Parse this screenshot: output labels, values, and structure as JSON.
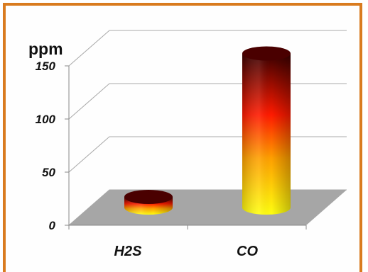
{
  "chart_data": {
    "type": "bar",
    "style": "3d-cylinder",
    "categories": [
      "H2S",
      "CO"
    ],
    "values": [
      10,
      145
    ],
    "ylabel": "ppm",
    "ylim": [
      0,
      150
    ],
    "yticks": [
      "0",
      "50",
      "100",
      "150"
    ],
    "grid": true,
    "legend": "none",
    "colors": {
      "low": "#ffee00",
      "mid": "#ff2000",
      "high": "#3a0000",
      "floor": "#a6a6a6",
      "border": "#d97b1f"
    }
  }
}
